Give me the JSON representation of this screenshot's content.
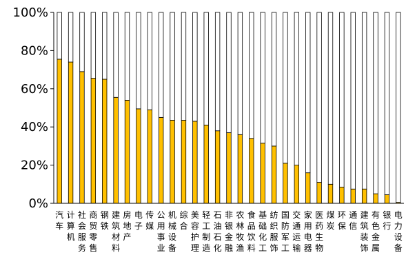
{
  "chart_data": {
    "type": "bar",
    "stacked": true,
    "percent_scale": true,
    "ylim": [
      0,
      100
    ],
    "y_ticks": [
      "0%",
      "20%",
      "40%",
      "60%",
      "80%",
      "100%"
    ],
    "categories": [
      "汽车",
      "计算机",
      "社会服务",
      "商贸零售",
      "钢铁",
      "建筑材料",
      "房地产",
      "电子",
      "传媒",
      "公用事业",
      "机械设备",
      "综合",
      "美容护理",
      "轻工制造",
      "石油石化",
      "非银金融",
      "农林牧渔",
      "食品饮料",
      "基础化工",
      "纺织服饰",
      "国防军工",
      "交通运输",
      "家用电器",
      "医药生物",
      "煤炭",
      "环保",
      "通信",
      "建筑装饰",
      "有色金属",
      "银行",
      "电力设备"
    ],
    "series": [
      {
        "color": "#FFC000",
        "values": [
          75.5,
          74.0,
          69.0,
          65.5,
          65.0,
          55.5,
          54.0,
          49.5,
          49.0,
          45.0,
          43.5,
          43.5,
          43.0,
          41.0,
          38.0,
          37.0,
          36.0,
          34.0,
          31.5,
          30.0,
          21.0,
          20.0,
          16.0,
          11.0,
          10.0,
          8.5,
          7.5,
          7.5,
          5.0,
          4.5,
          0.5
        ]
      },
      {
        "color": "#FFFFFF",
        "values": [
          24.5,
          26.0,
          31.0,
          34.5,
          35.0,
          44.5,
          46.0,
          50.5,
          51.0,
          55.0,
          56.5,
          56.5,
          57.0,
          59.0,
          62.0,
          63.0,
          64.0,
          66.0,
          68.5,
          70.0,
          79.0,
          80.0,
          84.0,
          89.0,
          90.0,
          91.5,
          92.5,
          92.5,
          95.0,
          95.5,
          99.5
        ]
      }
    ],
    "xlabel": "",
    "ylabel": "",
    "title": "",
    "grid": false,
    "legend": "none"
  }
}
